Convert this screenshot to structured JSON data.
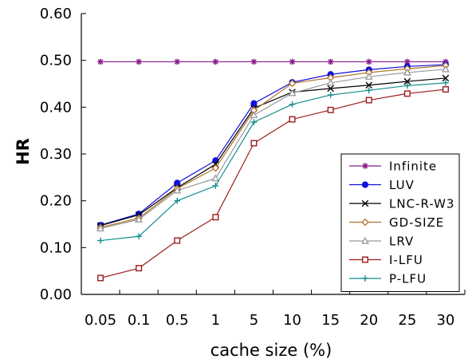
{
  "chart_data": {
    "type": "line",
    "title": "",
    "xlabel": "cache size (%)",
    "ylabel": "HR",
    "categories": [
      "0.05",
      "0.1",
      "0.5",
      "1",
      "5",
      "10",
      "15",
      "20",
      "25",
      "30"
    ],
    "ylim": [
      0,
      0.6
    ],
    "yticks": [
      "0.00",
      "0.10",
      "0.20",
      "0.30",
      "0.40",
      "0.50",
      "0.60"
    ],
    "grid": false,
    "legend_position": "bottom-right",
    "series": [
      {
        "name": "Infinite",
        "color": "#8b1a8b",
        "marker": "asterisk",
        "values": [
          0.497,
          0.497,
          0.497,
          0.497,
          0.497,
          0.497,
          0.497,
          0.497,
          0.497,
          0.497
        ]
      },
      {
        "name": "LUV",
        "color": "#1010e0",
        "marker": "filled-circle",
        "values": [
          0.148,
          0.172,
          0.238,
          0.286,
          0.408,
          0.453,
          0.47,
          0.48,
          0.487,
          0.491
        ]
      },
      {
        "name": "LNC-R-W3",
        "color": "#000000",
        "marker": "x",
        "values": [
          0.147,
          0.17,
          0.228,
          0.278,
          0.398,
          0.432,
          0.44,
          0.447,
          0.455,
          0.462
        ]
      },
      {
        "name": "GD-SIZE",
        "color": "#b0702a",
        "marker": "diamond",
        "values": [
          0.143,
          0.163,
          0.226,
          0.27,
          0.393,
          0.451,
          0.463,
          0.474,
          0.482,
          0.489
        ]
      },
      {
        "name": "LRV",
        "color": "#999999",
        "marker": "triangle",
        "values": [
          0.141,
          0.16,
          0.222,
          0.248,
          0.383,
          0.43,
          0.452,
          0.465,
          0.474,
          0.481
        ]
      },
      {
        "name": "I-LFU",
        "color": "#9c1c1c",
        "marker": "square",
        "values": [
          0.035,
          0.056,
          0.115,
          0.165,
          0.323,
          0.374,
          0.394,
          0.415,
          0.429,
          0.438
        ]
      },
      {
        "name": "P-LFU",
        "color": "#138c8c",
        "marker": "plus",
        "values": [
          0.115,
          0.124,
          0.2,
          0.232,
          0.368,
          0.406,
          0.426,
          0.436,
          0.446,
          0.452
        ]
      }
    ]
  }
}
